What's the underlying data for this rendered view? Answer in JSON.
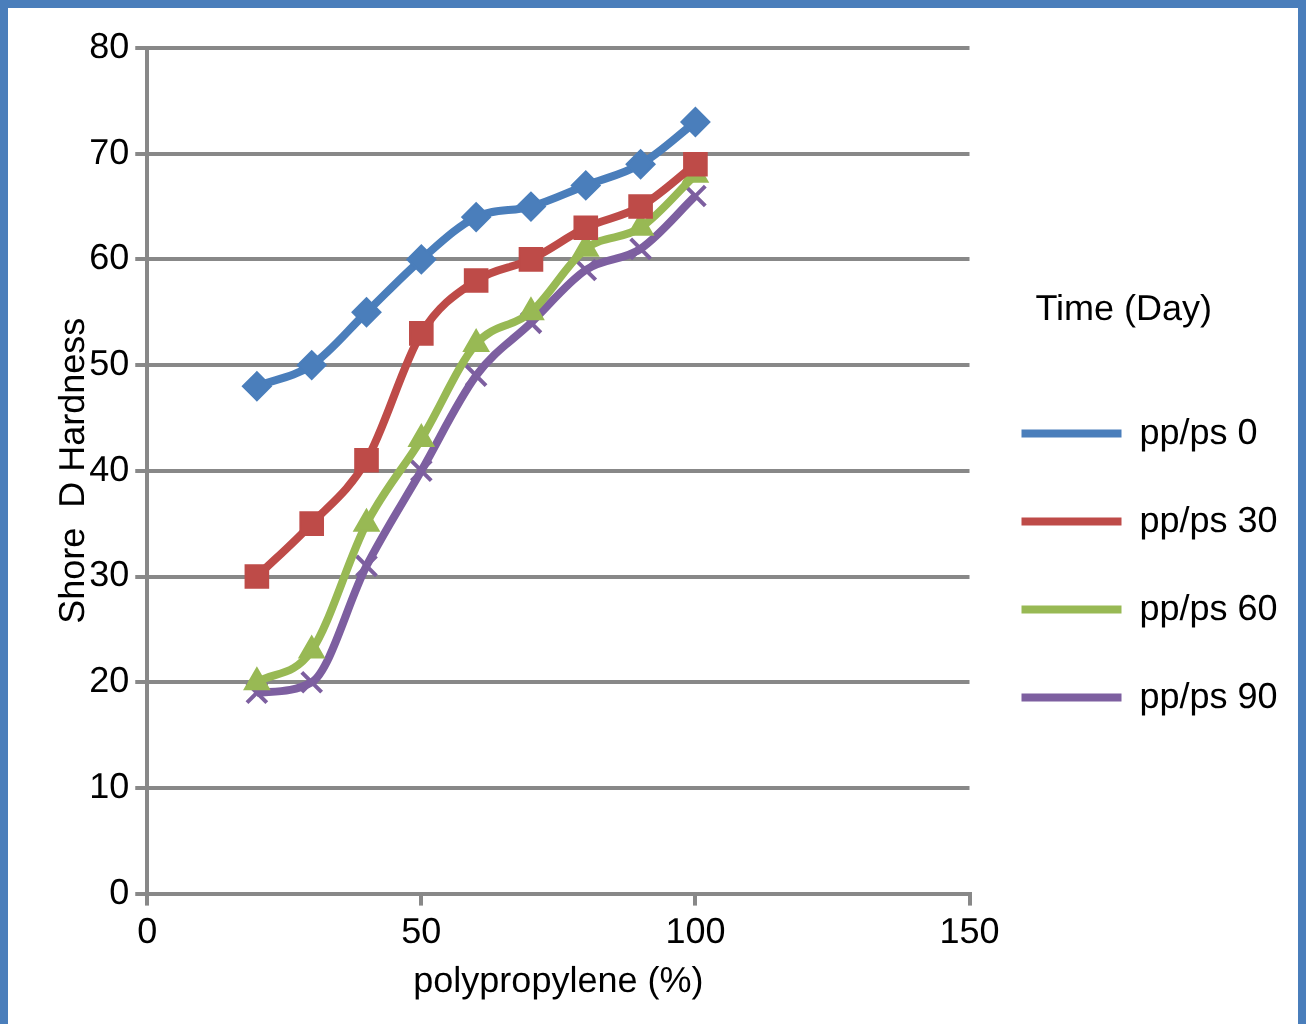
{
  "chart_data": {
    "type": "line",
    "xlabel": "polypropylene (%)",
    "ylabel": "Shore  D Hardness",
    "legend_title": "Time (Day)",
    "legend": "right",
    "x": [
      20,
      30,
      40,
      50,
      60,
      70,
      80,
      90,
      100
    ],
    "xlim": [
      0,
      150
    ],
    "xticks": [
      0,
      50,
      100,
      150
    ],
    "ylim": [
      0,
      80
    ],
    "yticks": [
      0,
      10,
      20,
      30,
      40,
      50,
      60,
      70,
      80
    ],
    "grid": "y",
    "series": [
      {
        "name": "pp/ps 0",
        "color": "#4a7ebb",
        "marker": "diamond",
        "values": [
          48,
          50,
          55,
          60,
          64,
          65,
          67,
          69,
          73
        ]
      },
      {
        "name": "pp/ps 30",
        "color": "#be4b48",
        "marker": "square",
        "values": [
          30,
          35,
          41,
          53,
          58,
          60,
          63,
          65,
          69
        ]
      },
      {
        "name": "pp/ps 60",
        "color": "#98b954",
        "marker": "triangle",
        "values": [
          20,
          23,
          35,
          43,
          52,
          55,
          61,
          63,
          68
        ]
      },
      {
        "name": "pp/ps 90",
        "color": "#7d5fa0",
        "marker": "cross",
        "values": [
          19,
          20,
          31,
          40,
          49,
          54,
          59,
          61,
          66
        ]
      }
    ]
  }
}
